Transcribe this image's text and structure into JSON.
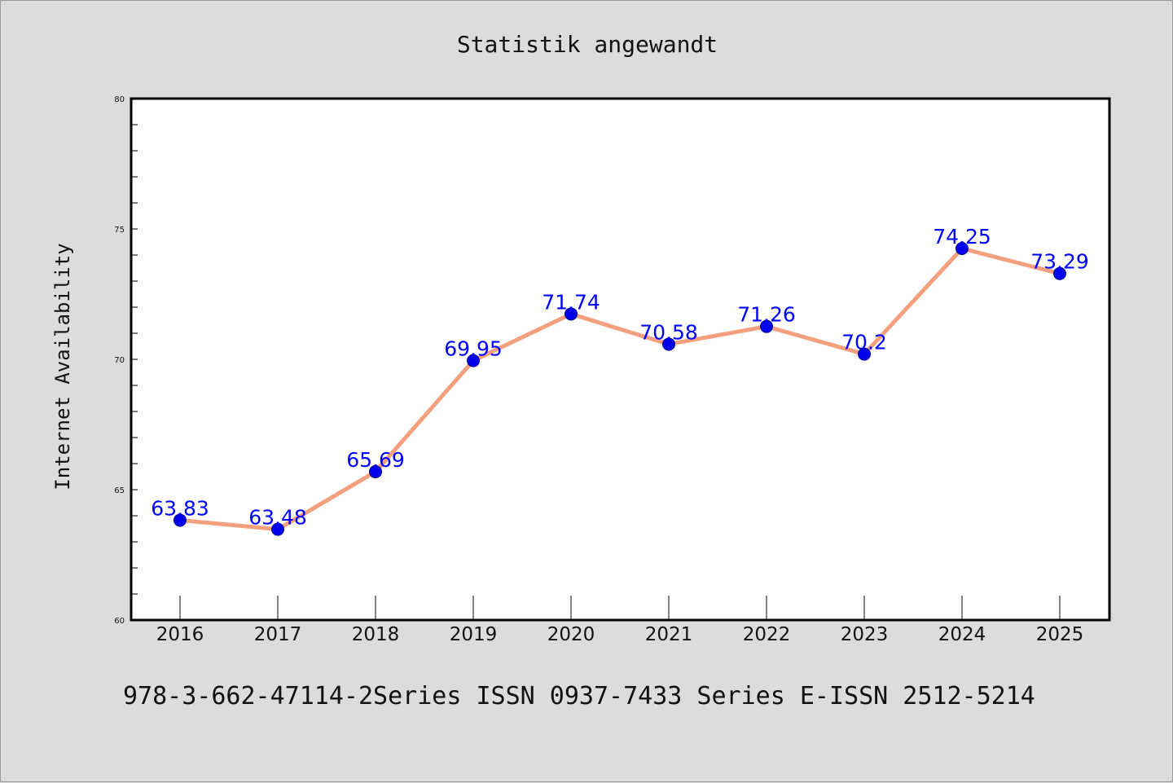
{
  "chart_data": {
    "type": "line",
    "title": "Statistik angewandt",
    "xlabel": "",
    "ylabel": "Internet Availability",
    "categories": [
      "2016",
      "2017",
      "2018",
      "2019",
      "2020",
      "2021",
      "2022",
      "2023",
      "2024",
      "2025"
    ],
    "series": [
      {
        "values": [
          63.83,
          63.48,
          65.69,
          69.95,
          71.74,
          70.58,
          71.26,
          70.2,
          74.25,
          73.29
        ],
        "data_labels": [
          "63.83",
          "63.48",
          "65.69",
          "69.95",
          "71.74",
          "70.58",
          "71.26",
          "70.2",
          "74.25",
          "73.29"
        ]
      }
    ],
    "ylim": [
      60,
      80
    ],
    "yticks": [
      "60",
      "65",
      "70",
      "75",
      "80"
    ],
    "grid": false,
    "legend": "none",
    "colors": {
      "line": "#f4a07e",
      "marker": "#0000ee",
      "label": "#0000ff",
      "background": "#dcdcdc",
      "plot_background": "#ffffff"
    }
  },
  "footer": "978-3-662-47114-2Series ISSN 0937-7433 Series E-ISSN 2512-5214"
}
